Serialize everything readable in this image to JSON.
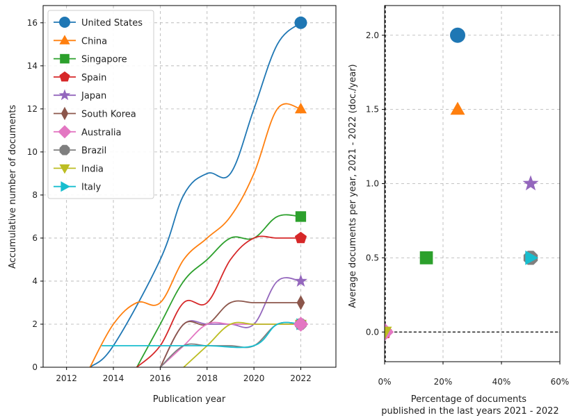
{
  "chart_data": [
    {
      "type": "line",
      "xlabel": "Publication year",
      "ylabel": "Accumulative number of documents",
      "xlim": [
        2011,
        2023.5
      ],
      "ylim": [
        0,
        16.8
      ],
      "xticks": [
        2012,
        2014,
        2016,
        2018,
        2020,
        2022
      ],
      "yticks": [
        0,
        2,
        4,
        6,
        8,
        10,
        12,
        14,
        16
      ],
      "grid": true,
      "legend_position": "upper-left",
      "series": [
        {
          "name": "United States",
          "color": "#1f77b4",
          "marker": "circle",
          "points": [
            [
              2013,
              0
            ],
            [
              2014,
              1
            ],
            [
              2016,
              5
            ],
            [
              2017,
              8
            ],
            [
              2018,
              9
            ],
            [
              2019,
              9
            ],
            [
              2020,
              12
            ],
            [
              2021,
              15
            ],
            [
              2022,
              16
            ]
          ]
        },
        {
          "name": "China",
          "color": "#ff7f0e",
          "marker": "triangle-up",
          "points": [
            [
              2013,
              0
            ],
            [
              2014,
              2
            ],
            [
              2015,
              3
            ],
            [
              2016,
              3
            ],
            [
              2017,
              5
            ],
            [
              2018,
              6
            ],
            [
              2019,
              7
            ],
            [
              2020,
              9
            ],
            [
              2021,
              12
            ],
            [
              2022,
              12
            ]
          ]
        },
        {
          "name": "Singapore",
          "color": "#2ca02c",
          "marker": "square",
          "points": [
            [
              2015,
              0
            ],
            [
              2016,
              2
            ],
            [
              2017,
              4
            ],
            [
              2018,
              5
            ],
            [
              2019,
              6
            ],
            [
              2020,
              6
            ],
            [
              2021,
              7
            ],
            [
              2022,
              7
            ]
          ]
        },
        {
          "name": "Spain",
          "color": "#d62728",
          "marker": "pentagon",
          "points": [
            [
              2015,
              0
            ],
            [
              2016,
              1
            ],
            [
              2017,
              3
            ],
            [
              2018,
              3
            ],
            [
              2019,
              5
            ],
            [
              2020,
              6
            ],
            [
              2021,
              6
            ],
            [
              2022,
              6
            ]
          ]
        },
        {
          "name": "Japan",
          "color": "#9467bd",
          "marker": "star",
          "points": [
            [
              2016,
              0
            ],
            [
              2017,
              2
            ],
            [
              2018,
              2
            ],
            [
              2019,
              2
            ],
            [
              2020,
              2
            ],
            [
              2021,
              4
            ],
            [
              2022,
              4
            ]
          ]
        },
        {
          "name": "South Korea",
          "color": "#8c564b",
          "marker": "thin-diamond",
          "points": [
            [
              2016,
              0
            ],
            [
              2017,
              2
            ],
            [
              2018,
              2
            ],
            [
              2019,
              3
            ],
            [
              2020,
              3
            ],
            [
              2021,
              3
            ],
            [
              2022,
              3
            ]
          ]
        },
        {
          "name": "Australia",
          "color": "#e377c2",
          "marker": "diamond",
          "points": [
            [
              2016,
              0
            ],
            [
              2017,
              1
            ],
            [
              2018,
              2
            ],
            [
              2019,
              2
            ],
            [
              2020,
              2
            ],
            [
              2021,
              2
            ],
            [
              2022,
              2
            ]
          ]
        },
        {
          "name": "Brazil",
          "color": "#7f7f7f",
          "marker": "octagon",
          "points": [
            [
              2016,
              0
            ],
            [
              2017,
              1
            ],
            [
              2018,
              1
            ],
            [
              2019,
              1
            ],
            [
              2020,
              1
            ],
            [
              2021,
              2
            ],
            [
              2022,
              2
            ]
          ]
        },
        {
          "name": "India",
          "color": "#bcbd22",
          "marker": "triangle-down",
          "points": [
            [
              2017,
              0
            ],
            [
              2018,
              1
            ],
            [
              2019,
              2
            ],
            [
              2020,
              2
            ],
            [
              2021,
              2
            ],
            [
              2022,
              2
            ]
          ]
        },
        {
          "name": "Italy",
          "color": "#17becf",
          "marker": "triangle-right",
          "points": [
            [
              2013.5,
              1
            ],
            [
              2014,
              1
            ],
            [
              2016,
              1
            ],
            [
              2018,
              1
            ],
            [
              2020,
              1
            ],
            [
              2021,
              2
            ],
            [
              2022,
              2
            ]
          ]
        }
      ]
    },
    {
      "type": "scatter",
      "xlabel": "Percentage of documents\npublished in the last years 2021 - 2022",
      "ylabel": "Average documents per year, 2021 - 2022 (doc./year)",
      "xlim": [
        0,
        60
      ],
      "ylim": [
        -0.2,
        2.2
      ],
      "xticks": [
        0,
        20,
        40,
        60
      ],
      "xtick_labels": [
        "0%",
        "20%",
        "40%",
        "60%"
      ],
      "yticks": [
        0.0,
        0.5,
        1.0,
        1.5,
        2.0
      ],
      "ytick_labels": [
        "0.0",
        "0.5",
        "1.0",
        "1.5",
        "2.0"
      ],
      "grid": true,
      "reference_lines": {
        "horizontal_y": 0,
        "vertical_x": 0
      },
      "points": [
        {
          "name": "United States",
          "x": 25,
          "y": 2.0
        },
        {
          "name": "China",
          "x": 25,
          "y": 1.5
        },
        {
          "name": "Singapore",
          "x": 14.3,
          "y": 0.5
        },
        {
          "name": "Spain",
          "x": 0,
          "y": 0
        },
        {
          "name": "Japan",
          "x": 50,
          "y": 1.0
        },
        {
          "name": "South Korea",
          "x": 0,
          "y": 0
        },
        {
          "name": "Australia",
          "x": 0,
          "y": 0
        },
        {
          "name": "Brazil",
          "x": 50,
          "y": 0.5
        },
        {
          "name": "India",
          "x": 0,
          "y": 0
        },
        {
          "name": "Italy",
          "x": 50,
          "y": 0.5
        }
      ]
    }
  ]
}
